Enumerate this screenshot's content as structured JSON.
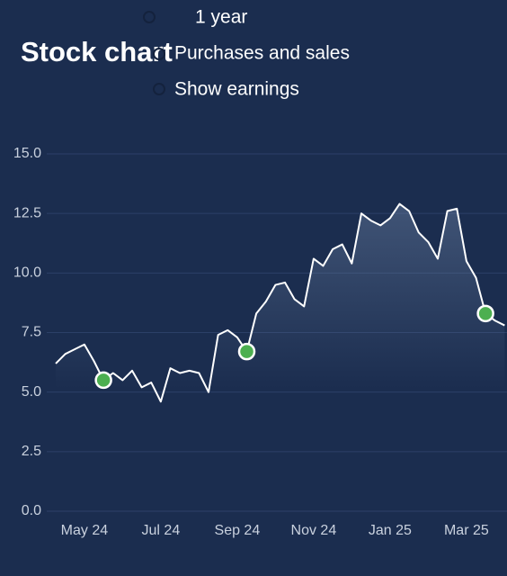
{
  "title": "Stock chart",
  "options": [
    "1 year",
    "Purchases and sales",
    "Show earnings"
  ],
  "chart_data": {
    "type": "line",
    "categories": [
      "",
      "",
      "",
      "May 24",
      "",
      "",
      "",
      "",
      "",
      "",
      "",
      "Jul 24",
      "",
      "",
      "",
      "",
      "",
      "",
      "",
      "Sep 24",
      "",
      "",
      "",
      "",
      "",
      "",
      "",
      "Nov 24",
      "",
      "",
      "",
      "",
      "",
      "",
      "",
      "Jan 25",
      "",
      "",
      "",
      "",
      "",
      "",
      "",
      "Mar 25",
      "",
      "",
      "",
      ""
    ],
    "values": [
      6.2,
      6.6,
      6.8,
      7.0,
      6.3,
      5.5,
      5.8,
      5.5,
      5.9,
      5.2,
      5.4,
      4.6,
      6.0,
      5.8,
      5.9,
      5.8,
      5.0,
      7.4,
      7.6,
      7.3,
      6.7,
      8.3,
      8.8,
      9.5,
      9.6,
      8.9,
      8.6,
      10.6,
      10.3,
      11.0,
      11.2,
      10.4,
      12.5,
      12.2,
      12.0,
      12.3,
      12.9,
      12.6,
      11.7,
      11.3,
      10.6,
      12.6,
      12.7,
      10.5,
      9.8,
      8.3,
      8.0,
      7.8
    ],
    "earnings": [
      null,
      null,
      null,
      null,
      null,
      5.5,
      null,
      null,
      null,
      null,
      null,
      null,
      null,
      null,
      null,
      null,
      null,
      null,
      null,
      null,
      6.7,
      null,
      null,
      null,
      null,
      null,
      null,
      null,
      null,
      null,
      null,
      null,
      null,
      null,
      null,
      null,
      null,
      null,
      null,
      null,
      null,
      null,
      null,
      null,
      null,
      8.3,
      null,
      null
    ],
    "color": "#ffffff",
    "earnings_color": "#4caf50",
    "ylim": [
      0,
      15
    ],
    "yticks": [
      {
        "value": 0,
        "label": "0.0"
      },
      2.5,
      {
        "value": 5,
        "label": "5.0"
      },
      7.5,
      {
        "value": 10,
        "label": "10.0"
      },
      12.5,
      {
        "value": 15,
        "label": "15.0"
      }
    ],
    "grid": true
  }
}
